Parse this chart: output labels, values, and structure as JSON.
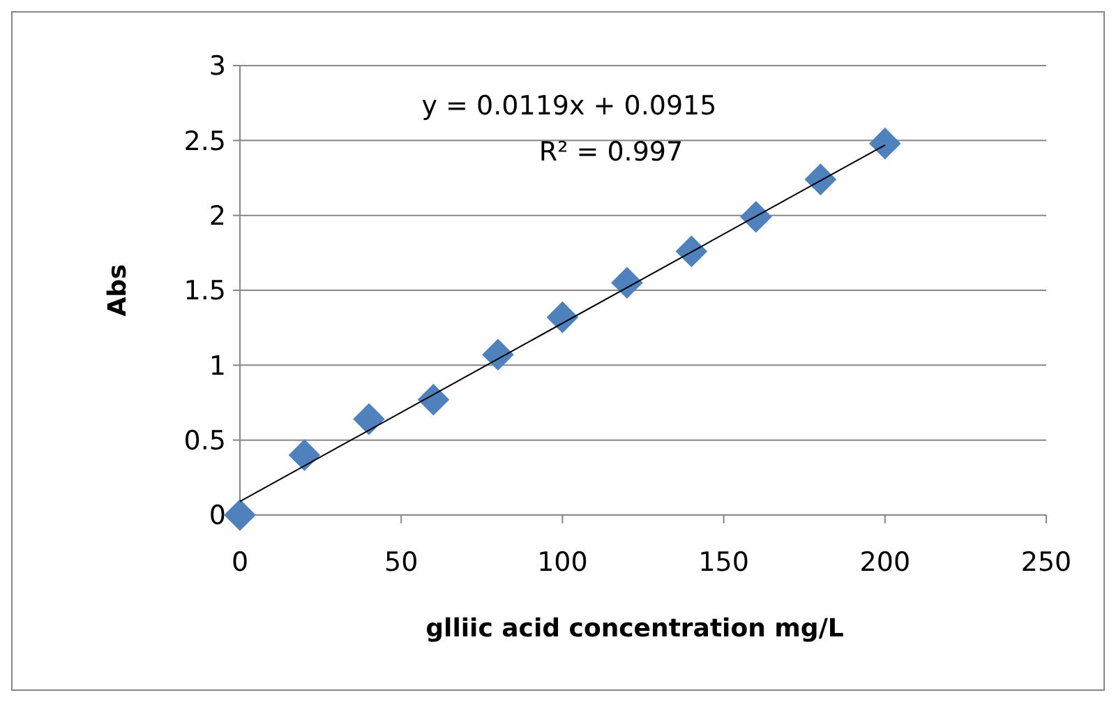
{
  "chart_data": {
    "type": "scatter",
    "xlabel": "glliic acid concentration mg/L",
    "ylabel": "Abs",
    "x": [
      0,
      20,
      40,
      60,
      80,
      100,
      120,
      140,
      160,
      180,
      200
    ],
    "series": [
      {
        "color": "#4f81bd",
        "marker": "diamond",
        "values": [
          0,
          0.4,
          0.64,
          0.77,
          1.07,
          1.32,
          1.55,
          1.76,
          1.99,
          2.24,
          2.48
        ]
      },
      {
        "type": "line",
        "color": "#000000",
        "marker": "none",
        "x": [
          0,
          200
        ],
        "values": [
          0.09,
          2.47
        ]
      }
    ],
    "annotations": [
      "y = 0.0119x + 0.0915",
      "R² = 0.997"
    ],
    "xlim": [
      0,
      250
    ],
    "xticks": [
      0,
      50,
      100,
      150,
      200,
      250
    ],
    "ylim": [
      0,
      3
    ],
    "yticks": [
      0,
      0.5,
      1,
      1.5,
      2,
      2.5,
      3
    ],
    "grid": "y"
  }
}
